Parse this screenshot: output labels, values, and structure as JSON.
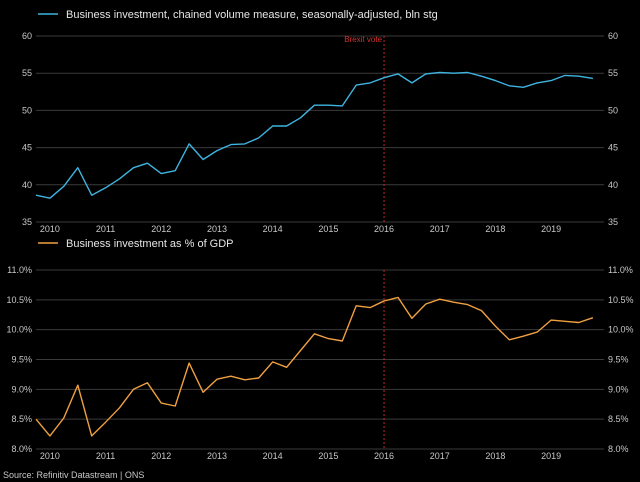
{
  "source": "Source: Refinitiv Datastream | ONS",
  "annotation": "Brexit vote",
  "colors": {
    "background": "#000000",
    "grid": "#3a3a3a",
    "top_series": "#3fb4e0",
    "bottom_series": "#f0a040",
    "brexit_line": "#c0282c",
    "text": "#c8c8c8"
  },
  "chart_data": [
    {
      "type": "line",
      "legend": "Business investment, chained volume measure, seasonally-adjusted, bln stg",
      "legend_position": "top-left",
      "grid": true,
      "x_ticks": [
        2010,
        2011,
        2012,
        2013,
        2014,
        2015,
        2016,
        2017,
        2018,
        2019
      ],
      "ylim": [
        35,
        60
      ],
      "y_ticks": [
        35,
        40,
        45,
        50,
        55,
        60
      ],
      "y_tick_labels": [
        "35",
        "40",
        "45",
        "50",
        "55",
        "60"
      ],
      "event_x": 2016.0,
      "series": [
        {
          "x": [
            2009.75,
            2010.0,
            2010.25,
            2010.5,
            2010.75,
            2011.0,
            2011.25,
            2011.5,
            2011.75,
            2012.0,
            2012.25,
            2012.5,
            2012.75,
            2013.0,
            2013.25,
            2013.5,
            2013.75,
            2014.0,
            2014.25,
            2014.5,
            2014.75,
            2015.0,
            2015.25,
            2015.5,
            2015.75,
            2016.0,
            2016.25,
            2016.5,
            2016.75,
            2017.0,
            2017.25,
            2017.5,
            2017.75,
            2018.0,
            2018.25,
            2018.5,
            2018.75,
            2019.0,
            2019.25,
            2019.5,
            2019.75
          ],
          "values": [
            38.6,
            38.2,
            39.8,
            42.3,
            38.6,
            39.6,
            40.8,
            42.3,
            42.9,
            41.5,
            41.9,
            45.5,
            43.4,
            44.6,
            45.4,
            45.5,
            46.3,
            47.9,
            47.9,
            49.0,
            50.7,
            50.7,
            50.6,
            53.4,
            53.7,
            54.4,
            54.9,
            53.7,
            54.9,
            55.1,
            55.0,
            55.1,
            54.6,
            54.0,
            53.3,
            53.1,
            53.7,
            54.0,
            54.7,
            54.6,
            54.3
          ]
        }
      ]
    },
    {
      "type": "line",
      "legend": "Business investment as % of GDP",
      "legend_position": "top-left",
      "grid": true,
      "x_ticks": [
        2010,
        2011,
        2012,
        2013,
        2014,
        2015,
        2016,
        2017,
        2018,
        2019
      ],
      "ylim": [
        8.0,
        11.0
      ],
      "y_ticks": [
        8.0,
        8.5,
        9.0,
        9.5,
        10.0,
        10.5,
        11.0
      ],
      "y_tick_labels": [
        "8.0%",
        "8.5%",
        "9.0%",
        "9.5%",
        "10.0%",
        "10.5%",
        "11.0%"
      ],
      "event_x": 2016.0,
      "series": [
        {
          "x": [
            2009.75,
            2010.0,
            2010.25,
            2010.5,
            2010.75,
            2011.0,
            2011.25,
            2011.5,
            2011.75,
            2012.0,
            2012.25,
            2012.5,
            2012.75,
            2013.0,
            2013.25,
            2013.5,
            2013.75,
            2014.0,
            2014.25,
            2014.5,
            2014.75,
            2015.0,
            2015.25,
            2015.5,
            2015.75,
            2016.0,
            2016.25,
            2016.5,
            2016.75,
            2017.0,
            2017.25,
            2017.5,
            2017.75,
            2018.0,
            2018.25,
            2018.5,
            2018.75,
            2019.0,
            2019.25,
            2019.5,
            2019.75
          ],
          "values": [
            8.5,
            8.22,
            8.52,
            9.07,
            8.22,
            8.45,
            8.69,
            9.0,
            9.11,
            8.77,
            8.72,
            9.44,
            8.95,
            9.17,
            9.22,
            9.16,
            9.19,
            9.46,
            9.37,
            9.65,
            9.93,
            9.85,
            9.81,
            10.4,
            10.37,
            10.48,
            10.54,
            10.19,
            10.43,
            10.51,
            10.46,
            10.42,
            10.32,
            10.06,
            9.83,
            9.89,
            9.96,
            10.16,
            10.14,
            10.12,
            10.2
          ]
        }
      ]
    }
  ]
}
